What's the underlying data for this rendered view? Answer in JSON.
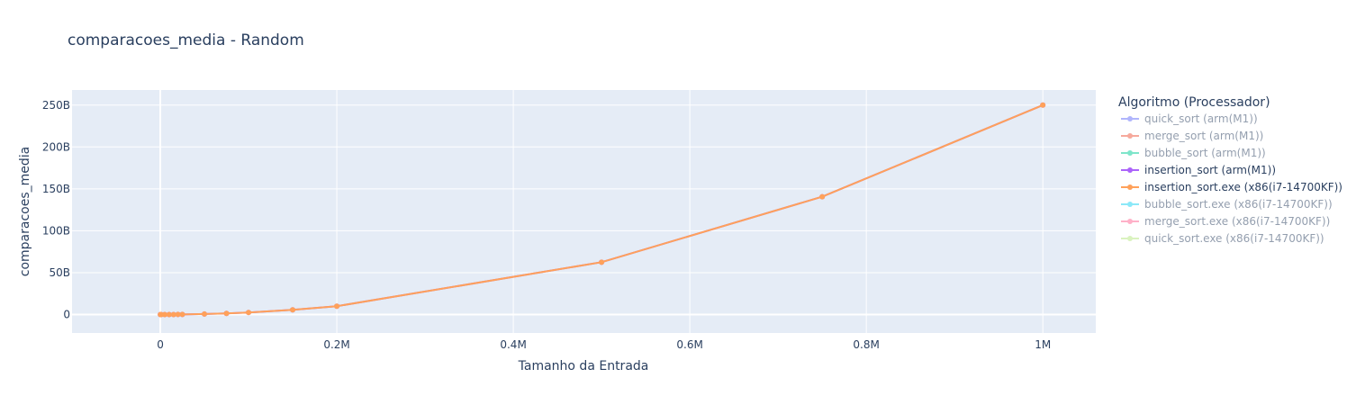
{
  "chart_data": {
    "type": "line",
    "title": "comparacoes_media - Random",
    "xlabel": "Tamanho da Entrada",
    "ylabel": "comparacoes_media",
    "xlim": [
      -100000,
      1060000
    ],
    "ylim": [
      -22000000000,
      268000000000
    ],
    "x_ticks": [
      0,
      200000,
      400000,
      600000,
      800000,
      1000000
    ],
    "x_tick_labels": [
      "0",
      "0.2M",
      "0.4M",
      "0.6M",
      "0.8M",
      "1M"
    ],
    "y_ticks": [
      0,
      50000000000,
      100000000000,
      150000000000,
      200000000000,
      250000000000
    ],
    "y_tick_labels": [
      "0",
      "50B",
      "100B",
      "150B",
      "200B",
      "250B"
    ],
    "grid": true,
    "legend_title": "Algoritmo (Processador)",
    "legend_position": "right",
    "series": [
      {
        "name": "quick_sort (arm(M1))",
        "color": "#636efa",
        "visible": false
      },
      {
        "name": "merge_sort (arm(M1))",
        "color": "#ef553b",
        "visible": false
      },
      {
        "name": "bubble_sort (arm(M1))",
        "color": "#00cc96",
        "visible": false
      },
      {
        "name": "insertion_sort (arm(M1))",
        "color": "#ab63fa",
        "visible": true,
        "x": [
          100,
          1000,
          5000,
          10000,
          15000,
          20000,
          25000,
          50000,
          75000,
          100000,
          150000,
          200000,
          500000,
          750000,
          1000000
        ],
        "y": [
          2500,
          250000,
          6250000,
          25000000,
          56250000,
          100000000,
          156250000,
          625000000,
          1406250000,
          2500000000,
          5625000000,
          10000000000,
          62500000000,
          140625000000,
          250000000000
        ]
      },
      {
        "name": "insertion_sort.exe (x86(i7-14700KF))",
        "color": "#ffa15a",
        "visible": true,
        "x": [
          100,
          1000,
          5000,
          10000,
          15000,
          20000,
          25000,
          50000,
          75000,
          100000,
          150000,
          200000,
          500000,
          750000,
          1000000
        ],
        "y": [
          2500,
          250000,
          6250000,
          25000000,
          56250000,
          100000000,
          156250000,
          625000000,
          1406250000,
          2500000000,
          5625000000,
          10000000000,
          62500000000,
          140625000000,
          250000000000
        ]
      },
      {
        "name": "bubble_sort.exe (x86(i7-14700KF))",
        "color": "#19d3f3",
        "visible": false
      },
      {
        "name": "merge_sort.exe (x86(i7-14700KF))",
        "color": "#ff6692",
        "visible": false
      },
      {
        "name": "quick_sort.exe (x86(i7-14700KF))",
        "color": "#b6e880",
        "visible": false
      }
    ]
  }
}
